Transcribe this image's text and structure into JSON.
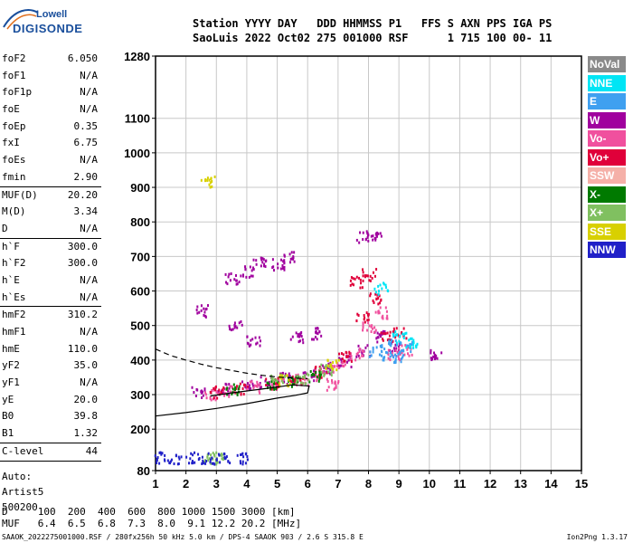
{
  "logo": {
    "line1": "Lowell",
    "line2": "DIGISONDE"
  },
  "header": {
    "line1": "Station YYYY DAY   DDD HHMMSS P1   FFS S AXN PPS IGA PS",
    "line2": "SaoLuis 2022 Oct02 275 001000 RSF      1 715 100 00- 11"
  },
  "params": {
    "g1": [
      {
        "k": "foF2",
        "v": "6.050"
      },
      {
        "k": "foF1",
        "v": "N/A"
      },
      {
        "k": "foF1p",
        "v": "N/A"
      },
      {
        "k": "foE",
        "v": "N/A"
      },
      {
        "k": "foEp",
        "v": "0.35"
      },
      {
        "k": "fxI",
        "v": "6.75"
      },
      {
        "k": "foEs",
        "v": "N/A"
      },
      {
        "k": "fmin",
        "v": "2.90"
      }
    ],
    "g2": [
      {
        "k": "MUF(D)",
        "v": "20.20"
      },
      {
        "k": "M(D)",
        "v": "3.34"
      },
      {
        "k": "D",
        "v": "N/A"
      }
    ],
    "g3": [
      {
        "k": "h`F",
        "v": "300.0"
      },
      {
        "k": "h`F2",
        "v": "300.0"
      },
      {
        "k": "h`E",
        "v": "N/A"
      },
      {
        "k": "h`Es",
        "v": "N/A"
      }
    ],
    "g4": [
      {
        "k": "hmF2",
        "v": "310.2"
      },
      {
        "k": "hmF1",
        "v": "N/A"
      },
      {
        "k": "hmE",
        "v": "110.0"
      },
      {
        "k": "yF2",
        "v": "35.0"
      },
      {
        "k": "yF1",
        "v": "N/A"
      },
      {
        "k": "yE",
        "v": "20.0"
      },
      {
        "k": "B0",
        "v": "39.8"
      },
      {
        "k": "B1",
        "v": "1.32"
      }
    ],
    "g5": [
      {
        "k": "C-level",
        "v": "44"
      }
    ],
    "auto": [
      "Auto:",
      "Artist5",
      "500200"
    ]
  },
  "legend": [
    {
      "label": "NoVal",
      "color": "#8a8a8a"
    },
    {
      "label": "NNE",
      "color": "#00e5f5"
    },
    {
      "label": "E",
      "color": "#3fa0f0"
    },
    {
      "label": "W",
      "color": "#a0009e"
    },
    {
      "label": "Vo-",
      "color": "#f0509e"
    },
    {
      "label": "Vo+",
      "color": "#e0003a"
    },
    {
      "label": "SSW",
      "color": "#f5b0a8"
    },
    {
      "label": "X-",
      "color": "#007a00"
    },
    {
      "label": "X+",
      "color": "#80c060"
    },
    {
      "label": "SSE",
      "color": "#d8d000"
    },
    {
      "label": "NNW",
      "color": "#2020c8"
    }
  ],
  "bottom": {
    "line1": "D     100  200  400  600  800 1000 1500 3000 [km]",
    "line2": "MUF   6.4  6.5  6.8  7.3  8.0  9.1 12.2 20.2 [MHz]",
    "footer": "SAAOK_2022275001000.RSF / 280fx256h 50 kHz 5.0 km / DPS-4 SAAOK 903 / 2.6 S 315.8 E",
    "footer_right": "Ion2Png 1.3.17"
  },
  "chart_data": {
    "type": "scatter",
    "xlim": [
      1,
      15
    ],
    "ylim": [
      80,
      1280
    ],
    "x_ticks": [
      1,
      2,
      3,
      4,
      5,
      6,
      7,
      8,
      9,
      10,
      11,
      12,
      13,
      14,
      15
    ],
    "y_ticks": [
      80,
      200,
      300,
      400,
      500,
      600,
      700,
      800,
      900,
      1000,
      1100,
      1280
    ],
    "grid": true,
    "legend_position": "right",
    "series": [
      {
        "name": "W",
        "color": "#a0009e",
        "points": [
          [
            2.4,
            310
          ],
          [
            3.2,
            320
          ],
          [
            4.0,
            330
          ],
          [
            4.6,
            340
          ],
          [
            5.3,
            350
          ],
          [
            6.0,
            360
          ],
          [
            6.6,
            380
          ],
          [
            7.2,
            400
          ],
          [
            7.8,
            430
          ],
          [
            8.3,
            470
          ],
          [
            8.8,
            440
          ],
          [
            4.0,
            660
          ],
          [
            4.4,
            690
          ],
          [
            5.0,
            680
          ],
          [
            5.4,
            700
          ],
          [
            3.5,
            640
          ],
          [
            7.8,
            760
          ],
          [
            8.2,
            760
          ],
          [
            10.2,
            420
          ],
          [
            5.6,
            470
          ],
          [
            6.2,
            480
          ],
          [
            3.6,
            500
          ],
          [
            4.2,
            460
          ],
          [
            2.5,
            545
          ]
        ]
      },
      {
        "name": "Vo-",
        "color": "#f0509e",
        "points": [
          [
            2.8,
            305
          ],
          [
            3.4,
            315
          ],
          [
            4.2,
            325
          ],
          [
            5.0,
            335
          ],
          [
            5.8,
            345
          ],
          [
            6.4,
            360
          ],
          [
            7.0,
            385
          ],
          [
            7.6,
            420
          ],
          [
            8.0,
            500
          ],
          [
            8.4,
            540
          ],
          [
            8.8,
            420
          ],
          [
            6.8,
            330
          ],
          [
            9.2,
            430
          ]
        ]
      },
      {
        "name": "Vo+",
        "color": "#e0003a",
        "points": [
          [
            3.0,
            310
          ],
          [
            3.8,
            320
          ],
          [
            4.8,
            335
          ],
          [
            5.6,
            345
          ],
          [
            6.4,
            370
          ],
          [
            7.2,
            410
          ],
          [
            7.8,
            530
          ],
          [
            8.2,
            580
          ],
          [
            8.6,
            470
          ],
          [
            8.0,
            650
          ],
          [
            7.6,
            630
          ],
          [
            9.0,
            480
          ]
        ]
      },
      {
        "name": "E",
        "color": "#3fa0f0",
        "points": [
          [
            8.2,
            430
          ],
          [
            8.6,
            420
          ],
          [
            9.0,
            410
          ],
          [
            9.2,
            440
          ],
          [
            8.8,
            460
          ]
        ]
      },
      {
        "name": "NNE",
        "color": "#00e5f5",
        "points": [
          [
            9.0,
            470
          ],
          [
            8.4,
            610
          ],
          [
            9.4,
            450
          ]
        ]
      },
      {
        "name": "X-",
        "color": "#007a00",
        "points": [
          [
            4.8,
            330
          ],
          [
            5.5,
            340
          ],
          [
            6.2,
            355
          ],
          [
            3.5,
            320
          ]
        ]
      },
      {
        "name": "X+",
        "color": "#80c060",
        "points": [
          [
            5.0,
            345
          ],
          [
            5.8,
            350
          ],
          [
            6.6,
            375
          ],
          [
            2.8,
            120
          ],
          [
            3.0,
            118
          ]
        ]
      },
      {
        "name": "SSE",
        "color": "#d8d000",
        "points": [
          [
            2.7,
            920
          ],
          [
            5.2,
            345
          ],
          [
            6.8,
            390
          ]
        ]
      },
      {
        "name": "NNW",
        "color": "#2020c8",
        "points": [
          [
            1.1,
            120
          ],
          [
            1.6,
            118
          ],
          [
            2.2,
            120
          ],
          [
            2.7,
            118
          ],
          [
            3.2,
            120
          ],
          [
            3.8,
            118
          ]
        ]
      }
    ],
    "curves": [
      {
        "style": "solid",
        "points": [
          [
            1.0,
            238
          ],
          [
            2.0,
            248
          ],
          [
            3.0,
            260
          ],
          [
            4.0,
            274
          ],
          [
            5.0,
            290
          ],
          [
            5.6,
            298
          ],
          [
            6.0,
            305
          ],
          [
            6.05,
            325
          ],
          [
            5.5,
            328
          ],
          [
            4.5,
            316
          ],
          [
            3.5,
            305
          ],
          [
            2.8,
            296
          ]
        ]
      },
      {
        "style": "dashed",
        "points": [
          [
            1.0,
            432
          ],
          [
            1.5,
            413
          ],
          [
            2.0,
            400
          ],
          [
            2.5,
            388
          ],
          [
            3.0,
            378
          ],
          [
            3.5,
            370
          ],
          [
            4.0,
            362
          ],
          [
            4.5,
            356
          ],
          [
            5.0,
            351
          ],
          [
            5.5,
            348
          ],
          [
            6.0,
            346
          ]
        ]
      }
    ]
  }
}
